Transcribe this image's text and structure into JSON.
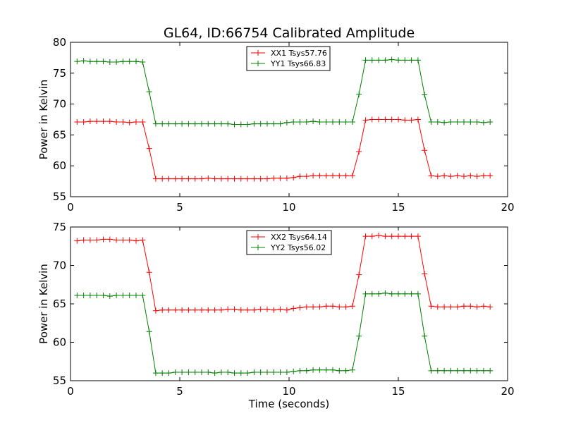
{
  "title": "GL64, ID:66754 Calibrated Amplitude",
  "chart_data": [
    {
      "type": "line",
      "ylabel": "Power in Kelvin",
      "xlabel": "",
      "xlim": [
        0,
        20
      ],
      "ylim": [
        55,
        80
      ],
      "xticks": [
        "0",
        "5",
        "10",
        "15",
        "20"
      ],
      "yticks": [
        "55",
        "60",
        "65",
        "70",
        "75",
        "80"
      ],
      "grid": false,
      "legend_position": "top-center",
      "series": [
        {
          "name": "XX1 Tsys57.76",
          "color": "#ff0000",
          "x": [
            0.3,
            0.6,
            0.9,
            1.2,
            1.5,
            1.8,
            2.1,
            2.4,
            2.7,
            3.0,
            3.3,
            3.6,
            3.9,
            4.2,
            4.5,
            4.8,
            5.1,
            5.4,
            5.7,
            6.0,
            6.3,
            6.6,
            6.9,
            7.2,
            7.5,
            7.8,
            8.1,
            8.4,
            8.7,
            9.0,
            9.3,
            9.6,
            9.9,
            10.2,
            10.5,
            10.8,
            11.1,
            11.4,
            11.7,
            12.0,
            12.3,
            12.6,
            12.9,
            13.2,
            13.5,
            13.8,
            14.1,
            14.4,
            14.7,
            15.0,
            15.3,
            15.6,
            15.9,
            16.2,
            16.5,
            16.8,
            17.1,
            17.4,
            17.7,
            18.0,
            18.3,
            18.6,
            18.9,
            19.2
          ],
          "y": [
            67.1,
            67.1,
            67.2,
            67.2,
            67.2,
            67.2,
            67.1,
            67.1,
            67.0,
            67.1,
            67.1,
            62.8,
            57.9,
            57.9,
            57.9,
            57.9,
            57.9,
            57.9,
            57.9,
            57.9,
            58.0,
            57.9,
            57.9,
            57.9,
            57.9,
            57.9,
            57.9,
            57.9,
            57.9,
            57.9,
            58.0,
            58.0,
            58.0,
            58.1,
            58.3,
            58.3,
            58.4,
            58.4,
            58.4,
            58.4,
            58.4,
            58.4,
            58.4,
            62.3,
            67.4,
            67.5,
            67.5,
            67.5,
            67.5,
            67.5,
            67.4,
            67.4,
            67.5,
            62.5,
            58.4,
            58.3,
            58.4,
            58.3,
            58.4,
            58.3,
            58.4,
            58.3,
            58.4,
            58.4
          ]
        },
        {
          "name": "YY1 Tsys66.83",
          "color": "#008000",
          "x": [
            0.3,
            0.6,
            0.9,
            1.2,
            1.5,
            1.8,
            2.1,
            2.4,
            2.7,
            3.0,
            3.3,
            3.6,
            3.9,
            4.2,
            4.5,
            4.8,
            5.1,
            5.4,
            5.7,
            6.0,
            6.3,
            6.6,
            6.9,
            7.2,
            7.5,
            7.8,
            8.1,
            8.4,
            8.7,
            9.0,
            9.3,
            9.6,
            9.9,
            10.2,
            10.5,
            10.8,
            11.1,
            11.4,
            11.7,
            12.0,
            12.3,
            12.6,
            12.9,
            13.2,
            13.5,
            13.8,
            14.1,
            14.4,
            14.7,
            15.0,
            15.3,
            15.6,
            15.9,
            16.2,
            16.5,
            16.8,
            17.1,
            17.4,
            17.7,
            18.0,
            18.3,
            18.6,
            18.9,
            19.2
          ],
          "y": [
            76.9,
            77.0,
            76.9,
            76.9,
            76.9,
            76.8,
            76.8,
            76.9,
            76.9,
            76.9,
            76.8,
            72.0,
            66.8,
            66.8,
            66.8,
            66.8,
            66.8,
            66.8,
            66.8,
            66.8,
            66.8,
            66.8,
            66.8,
            66.8,
            66.7,
            66.7,
            66.7,
            66.8,
            66.8,
            66.8,
            66.8,
            66.8,
            67.0,
            67.1,
            67.1,
            67.1,
            67.2,
            67.1,
            67.1,
            67.1,
            67.1,
            67.1,
            67.1,
            71.6,
            77.1,
            77.1,
            77.1,
            77.1,
            77.2,
            77.1,
            77.1,
            77.1,
            77.1,
            71.5,
            67.1,
            67.1,
            67.0,
            67.1,
            67.1,
            67.1,
            67.1,
            67.1,
            67.0,
            67.1
          ]
        }
      ]
    },
    {
      "type": "line",
      "ylabel": "Power in Kelvin",
      "xlabel": "Time (seconds)",
      "xlim": [
        0,
        20
      ],
      "ylim": [
        55,
        75
      ],
      "xticks": [
        "0",
        "5",
        "10",
        "15",
        "20"
      ],
      "yticks": [
        "55",
        "60",
        "65",
        "70",
        "75"
      ],
      "grid": false,
      "legend_position": "top-center",
      "series": [
        {
          "name": "XX2 Tsys64.14",
          "color": "#ff0000",
          "x": [
            0.3,
            0.6,
            0.9,
            1.2,
            1.5,
            1.8,
            2.1,
            2.4,
            2.7,
            3.0,
            3.3,
            3.6,
            3.9,
            4.2,
            4.5,
            4.8,
            5.1,
            5.4,
            5.7,
            6.0,
            6.3,
            6.6,
            6.9,
            7.2,
            7.5,
            7.8,
            8.1,
            8.4,
            8.7,
            9.0,
            9.3,
            9.6,
            9.9,
            10.2,
            10.5,
            10.8,
            11.1,
            11.4,
            11.7,
            12.0,
            12.3,
            12.6,
            12.9,
            13.2,
            13.5,
            13.8,
            14.1,
            14.4,
            14.7,
            15.0,
            15.3,
            15.6,
            15.9,
            16.2,
            16.5,
            16.8,
            17.1,
            17.4,
            17.7,
            18.0,
            18.3,
            18.6,
            18.9,
            19.2
          ],
          "y": [
            73.2,
            73.3,
            73.3,
            73.3,
            73.4,
            73.4,
            73.3,
            73.3,
            73.3,
            73.2,
            73.3,
            69.1,
            64.1,
            64.2,
            64.2,
            64.2,
            64.2,
            64.2,
            64.2,
            64.2,
            64.2,
            64.2,
            64.2,
            64.3,
            64.3,
            64.2,
            64.2,
            64.2,
            64.3,
            64.3,
            64.2,
            64.3,
            64.2,
            64.4,
            64.5,
            64.6,
            64.6,
            64.6,
            64.7,
            64.7,
            64.6,
            64.6,
            64.7,
            68.8,
            73.8,
            73.8,
            73.9,
            73.8,
            73.8,
            73.8,
            73.8,
            73.8,
            73.8,
            68.9,
            64.7,
            64.6,
            64.6,
            64.6,
            64.6,
            64.7,
            64.7,
            64.6,
            64.7,
            64.6
          ]
        },
        {
          "name": "YY2 Tsys56.02",
          "color": "#008000",
          "x": [
            0.3,
            0.6,
            0.9,
            1.2,
            1.5,
            1.8,
            2.1,
            2.4,
            2.7,
            3.0,
            3.3,
            3.6,
            3.9,
            4.2,
            4.5,
            4.8,
            5.1,
            5.4,
            5.7,
            6.0,
            6.3,
            6.6,
            6.9,
            7.2,
            7.5,
            7.8,
            8.1,
            8.4,
            8.7,
            9.0,
            9.3,
            9.6,
            9.9,
            10.2,
            10.5,
            10.8,
            11.1,
            11.4,
            11.7,
            12.0,
            12.3,
            12.6,
            12.9,
            13.2,
            13.5,
            13.8,
            14.1,
            14.4,
            14.7,
            15.0,
            15.3,
            15.6,
            15.9,
            16.2,
            16.5,
            16.8,
            17.1,
            17.4,
            17.7,
            18.0,
            18.3,
            18.6,
            18.9,
            19.2
          ],
          "y": [
            66.1,
            66.1,
            66.1,
            66.1,
            66.1,
            66.0,
            66.1,
            66.1,
            66.1,
            66.1,
            66.1,
            61.4,
            56.0,
            56.0,
            56.0,
            56.1,
            56.1,
            56.1,
            56.1,
            56.1,
            56.1,
            56.0,
            56.1,
            56.1,
            56.0,
            56.0,
            56.0,
            56.1,
            56.1,
            56.1,
            56.1,
            56.1,
            56.1,
            56.2,
            56.3,
            56.3,
            56.4,
            56.4,
            56.4,
            56.4,
            56.3,
            56.3,
            56.4,
            60.8,
            66.3,
            66.3,
            66.3,
            66.4,
            66.3,
            66.3,
            66.3,
            66.3,
            66.3,
            60.8,
            56.3,
            56.3,
            56.3,
            56.3,
            56.3,
            56.3,
            56.3,
            56.3,
            56.3,
            56.3
          ]
        }
      ]
    }
  ]
}
